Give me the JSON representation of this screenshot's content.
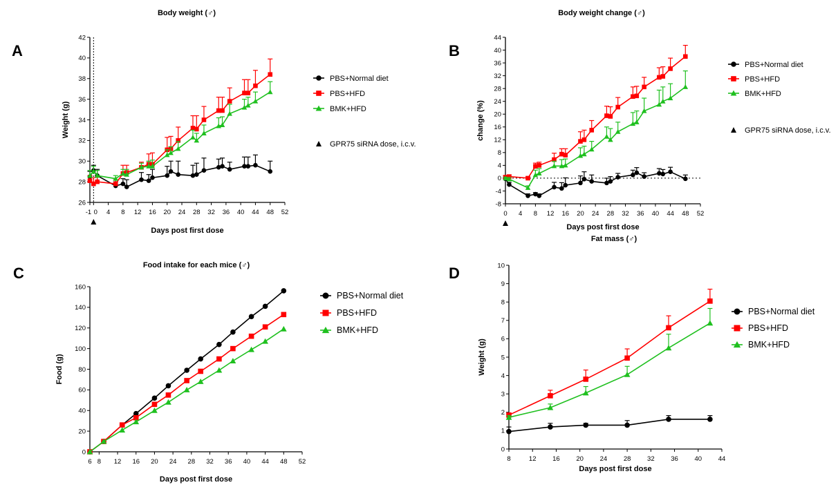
{
  "colors": {
    "normal": "#000000",
    "hfd": "#ff0000",
    "bmk": "#1fc01f"
  },
  "chart_data": [
    {
      "panel_label": "A",
      "type": "line",
      "title": "Body weight (♂)",
      "xlabel": "Days post first dose",
      "ylabel": "Weight (g)",
      "xlim": [
        -1,
        52
      ],
      "ylim": [
        26,
        42
      ],
      "xticks": [
        -1,
        0,
        4,
        8,
        12,
        16,
        20,
        24,
        28,
        32,
        36,
        40,
        44,
        48,
        52
      ],
      "xtick_labels": [
        "-1",
        "0",
        "4",
        "8",
        "12",
        "16",
        "20",
        "24",
        "28",
        "32",
        "36",
        "40",
        "44",
        "48",
        "52"
      ],
      "yticks": [
        26,
        28,
        30,
        32,
        34,
        36,
        38,
        40,
        42
      ],
      "error_bars": "upper",
      "dose_marker": {
        "x": 0,
        "label": "GPR75 siRNA dose, i.c.v."
      },
      "series": [
        {
          "name": "PBS+Normal diet",
          "color_key": "normal",
          "marker": "circle",
          "x": [
            -1,
            0,
            1,
            6,
            8,
            9,
            13,
            15,
            16,
            20,
            21,
            23,
            27,
            28,
            30,
            34,
            35,
            37,
            41,
            42,
            44,
            48
          ],
          "y": [
            28.5,
            29.1,
            28.6,
            27.6,
            27.8,
            27.5,
            28.2,
            28.1,
            28.4,
            28.6,
            29.0,
            28.7,
            28.6,
            28.7,
            29.1,
            29.4,
            29.5,
            29.2,
            29.5,
            29.5,
            29.6,
            29.0
          ],
          "err": [
            0.5,
            0.5,
            0.6,
            0.4,
            0.5,
            0.7,
            0.7,
            0.6,
            0.8,
            0.9,
            1.0,
            1.3,
            1.0,
            1.1,
            1.2,
            0.8,
            0.8,
            0.7,
            0.9,
            0.9,
            1.0,
            1.0
          ]
        },
        {
          "name": "PBS+HFD",
          "color_key": "hfd",
          "marker": "square",
          "x": [
            -1,
            0,
            1,
            6,
            8,
            9,
            13,
            15,
            16,
            20,
            21,
            23,
            27,
            28,
            30,
            34,
            35,
            37,
            41,
            42,
            44,
            48
          ],
          "y": [
            28.1,
            27.8,
            28.0,
            27.8,
            28.8,
            28.9,
            29.4,
            29.7,
            29.7,
            31.1,
            31.2,
            32.0,
            33.2,
            33.1,
            34.0,
            34.9,
            34.9,
            35.8,
            36.6,
            36.6,
            37.3,
            38.4
          ],
          "err": [
            0.5,
            0.6,
            0.5,
            0.4,
            0.8,
            0.7,
            0.5,
            1.0,
            1.1,
            1.2,
            1.2,
            1.3,
            1.2,
            1.3,
            1.3,
            1.3,
            1.3,
            1.3,
            1.3,
            1.3,
            1.5,
            1.5
          ]
        },
        {
          "name": "BMK+HFD",
          "color_key": "bmk",
          "marker": "triangle",
          "x": [
            -1,
            0,
            1,
            6,
            8,
            9,
            13,
            15,
            16,
            20,
            21,
            23,
            27,
            28,
            30,
            34,
            35,
            37,
            41,
            42,
            44,
            48
          ],
          "y": [
            28.6,
            29.0,
            28.6,
            28.3,
            28.8,
            28.7,
            29.4,
            29.5,
            29.5,
            30.6,
            30.8,
            31.2,
            32.3,
            32.0,
            32.7,
            33.4,
            33.5,
            34.6,
            35.2,
            35.4,
            35.8,
            36.7
          ],
          "err": [
            0.5,
            0.5,
            0.5,
            0.3,
            0.4,
            0.5,
            0.4,
            0.5,
            0.6,
            0.5,
            0.6,
            0.7,
            0.7,
            0.7,
            0.8,
            0.8,
            0.8,
            0.9,
            0.8,
            0.8,
            0.9,
            1.0
          ]
        }
      ]
    },
    {
      "panel_label": "B",
      "type": "line",
      "title": "Body weight change (♂)",
      "xlabel": "Days post first dose",
      "ylabel": "change (%)",
      "xlim": [
        0,
        52
      ],
      "ylim": [
        -8,
        44
      ],
      "xticks": [
        0,
        4,
        8,
        12,
        16,
        20,
        24,
        28,
        32,
        36,
        40,
        44,
        48,
        52
      ],
      "yticks": [
        -8,
        -4,
        0,
        4,
        8,
        12,
        16,
        20,
        24,
        28,
        32,
        36,
        40,
        44
      ],
      "error_bars": "upper",
      "zero_line": true,
      "dose_marker": {
        "x": 0,
        "label": "GPR75 siRNA dose, i.c.v."
      },
      "series": [
        {
          "name": "PBS+Normal diet",
          "color_key": "normal",
          "marker": "circle",
          "x": [
            0,
            1,
            6,
            8,
            9,
            13,
            15,
            16,
            20,
            21,
            23,
            27,
            28,
            30,
            34,
            35,
            37,
            41,
            42,
            44,
            48
          ],
          "y": [
            -0.2,
            -2.0,
            -5.5,
            -5.0,
            -5.5,
            -2.8,
            -3.2,
            -2.2,
            -1.5,
            -0.3,
            -1.0,
            -1.5,
            -1.0,
            0.3,
            1.0,
            1.7,
            0.5,
            1.5,
            1.3,
            2.0,
            -0.2
          ],
          "err": [
            0.5,
            0.7,
            0.6,
            0.5,
            0.6,
            1.5,
            1.8,
            2.3,
            2.2,
            2.3,
            2.0,
            1.5,
            1.5,
            1.2,
            1.5,
            1.6,
            1.2,
            1.5,
            1.4,
            1.4,
            1.2
          ]
        },
        {
          "name": "PBS+HFD",
          "color_key": "hfd",
          "marker": "square",
          "x": [
            0,
            1,
            6,
            8,
            9,
            13,
            15,
            16,
            20,
            21,
            23,
            27,
            28,
            30,
            34,
            35,
            37,
            41,
            42,
            44,
            48
          ],
          "y": [
            0.3,
            0.5,
            0.0,
            3.7,
            4.0,
            5.8,
            7.5,
            7.2,
            11.5,
            12.0,
            15.0,
            19.5,
            19.3,
            22.2,
            25.5,
            25.7,
            28.5,
            31.5,
            31.8,
            34.2,
            38.0
          ],
          "err": [
            0.5,
            0.5,
            0.5,
            1.0,
            1.0,
            2.0,
            1.7,
            2.0,
            3.0,
            3.0,
            3.0,
            3.0,
            3.0,
            3.0,
            3.0,
            3.0,
            3.0,
            3.0,
            3.0,
            3.3,
            3.5
          ]
        },
        {
          "name": "BMK+HFD",
          "color_key": "bmk",
          "marker": "triangle",
          "x": [
            0,
            1,
            6,
            8,
            9,
            13,
            15,
            16,
            20,
            21,
            23,
            27,
            28,
            30,
            34,
            35,
            37,
            41,
            42,
            44,
            48
          ],
          "y": [
            0.0,
            -0.3,
            -3.0,
            1.0,
            1.5,
            3.8,
            3.8,
            4.0,
            7.0,
            7.5,
            9.0,
            13.0,
            12.0,
            14.5,
            17.0,
            17.5,
            21.0,
            23.0,
            24.0,
            25.0,
            28.5
          ],
          "err": [
            0.3,
            0.5,
            0.6,
            1.5,
            1.5,
            1.5,
            2.0,
            2.0,
            2.5,
            2.5,
            2.5,
            3.0,
            3.5,
            3.0,
            3.5,
            3.5,
            4.0,
            4.5,
            4.5,
            4.5,
            5.0
          ]
        }
      ]
    },
    {
      "panel_label": "C",
      "type": "line",
      "title": "Food intake for each mice (♂)",
      "xlabel": "Days post first dose",
      "ylabel": "Food (g)",
      "xlim": [
        6,
        52
      ],
      "ylim": [
        0,
        160
      ],
      "xticks": [
        6,
        8,
        12,
        16,
        20,
        24,
        28,
        32,
        36,
        40,
        44,
        48,
        52
      ],
      "yticks": [
        0,
        20,
        40,
        60,
        80,
        100,
        120,
        140,
        160
      ],
      "series": [
        {
          "name": "PBS+Normal diet",
          "color_key": "normal",
          "marker": "circle",
          "x": [
            6,
            9,
            13,
            16,
            20,
            23,
            27,
            30,
            34,
            37,
            41,
            44,
            48
          ],
          "y": [
            0,
            10,
            26,
            37,
            52,
            64,
            79,
            90,
            104,
            116,
            131,
            141,
            156
          ]
        },
        {
          "name": "PBS+HFD",
          "color_key": "hfd",
          "marker": "square",
          "x": [
            6,
            9,
            13,
            16,
            20,
            23,
            27,
            30,
            34,
            37,
            41,
            44,
            48
          ],
          "y": [
            0,
            10,
            26,
            33,
            46,
            55,
            69,
            78,
            90,
            100,
            112,
            121,
            133
          ]
        },
        {
          "name": "BMK+HFD",
          "color_key": "bmk",
          "marker": "triangle",
          "x": [
            6,
            9,
            13,
            16,
            20,
            23,
            27,
            30,
            34,
            37,
            41,
            44,
            48
          ],
          "y": [
            0,
            10,
            21,
            29,
            40,
            48,
            60,
            68,
            79,
            88,
            99,
            107,
            119
          ]
        }
      ]
    },
    {
      "panel_label": "D",
      "type": "line",
      "title": "Fat mass (♂)",
      "xlabel": "Days post first dose",
      "ylabel": "Weight (g)",
      "xlim": [
        8,
        44
      ],
      "ylim": [
        0,
        10
      ],
      "xticks": [
        8,
        12,
        16,
        20,
        24,
        28,
        32,
        36,
        40,
        44
      ],
      "yticks": [
        0,
        1,
        2,
        3,
        4,
        5,
        6,
        7,
        8,
        9,
        10
      ],
      "error_bars": "upper",
      "series": [
        {
          "name": "PBS+Normal diet",
          "color_key": "normal",
          "marker": "circle",
          "x": [
            8,
            15,
            21,
            28,
            35,
            42
          ],
          "y": [
            0.95,
            1.2,
            1.3,
            1.3,
            1.62,
            1.62
          ],
          "err": [
            0.25,
            0.2,
            0.1,
            0.25,
            0.2,
            0.2
          ]
        },
        {
          "name": "PBS+HFD",
          "color_key": "hfd",
          "marker": "square",
          "x": [
            8,
            15,
            21,
            28,
            35,
            42
          ],
          "y": [
            1.85,
            2.9,
            3.8,
            4.95,
            6.6,
            8.05
          ],
          "err": [
            0.1,
            0.3,
            0.5,
            0.5,
            0.65,
            0.65
          ]
        },
        {
          "name": "BMK+HFD",
          "color_key": "bmk",
          "marker": "triangle",
          "x": [
            8,
            15,
            21,
            28,
            35,
            42
          ],
          "y": [
            1.72,
            2.25,
            3.05,
            4.05,
            5.5,
            6.85
          ],
          "err": [
            0.1,
            0.2,
            0.35,
            0.45,
            0.75,
            0.8
          ]
        }
      ]
    }
  ]
}
